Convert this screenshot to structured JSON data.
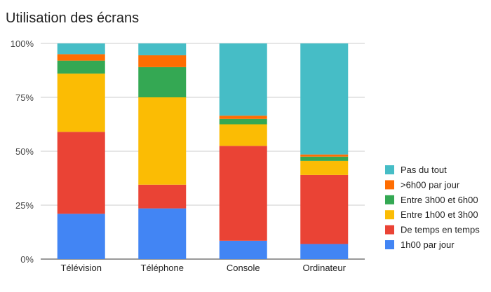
{
  "chart_data": {
    "type": "bar",
    "stacked": true,
    "title": "Utilisation des écrans",
    "xlabel": "",
    "ylabel": "",
    "ylim": [
      0,
      100
    ],
    "y_ticks": [
      "0%",
      "25%",
      "50%",
      "75%",
      "100%"
    ],
    "y_tick_values": [
      0,
      25,
      50,
      75,
      100
    ],
    "grid": true,
    "legend_position": "right",
    "categories": [
      "Télévision",
      "Téléphone",
      "Console",
      "Ordinateur"
    ],
    "series": [
      {
        "name": "1h00 par jour",
        "color": "#4285F4",
        "values": [
          21,
          23.5,
          8.5,
          7
        ]
      },
      {
        "name": "De temps en temps",
        "color": "#EA4335",
        "values": [
          38,
          11,
          44,
          32
        ]
      },
      {
        "name": "Entre 1h00 et 3h00",
        "color": "#FBBC04",
        "values": [
          27,
          40.5,
          10,
          6.5
        ]
      },
      {
        "name": "Entre 3h00 et 6h00",
        "color": "#34A853",
        "values": [
          6,
          14,
          2.5,
          2
        ]
      },
      {
        "name": ">6h00 par jour",
        "color": "#FF6D01",
        "values": [
          3,
          5.5,
          1.5,
          1
        ]
      },
      {
        "name": "Pas du tout",
        "color": "#46BDC6",
        "values": [
          5,
          5.5,
          33.5,
          51.5
        ]
      }
    ]
  }
}
